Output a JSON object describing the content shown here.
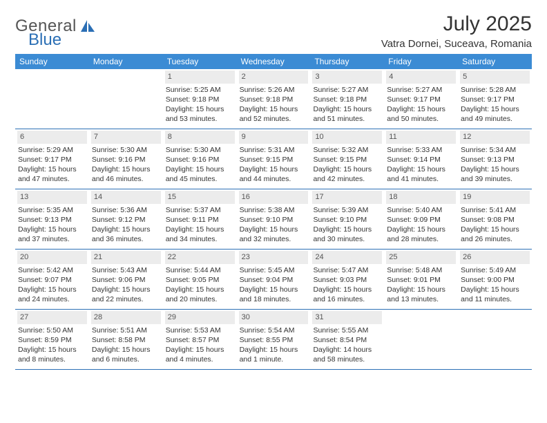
{
  "logo": {
    "word1": "General",
    "word2": "Blue"
  },
  "title": "July 2025",
  "location": "Vatra Dornei, Suceava, Romania",
  "colors": {
    "header_bg": "#3b8bd4",
    "header_text": "#ffffff",
    "row_border": "#2b6fb5",
    "daynum_bg": "#ececec",
    "text": "#333333"
  },
  "weekdays": [
    "Sunday",
    "Monday",
    "Tuesday",
    "Wednesday",
    "Thursday",
    "Friday",
    "Saturday"
  ],
  "weeks": [
    [
      {
        "n": "",
        "sunrise": "",
        "sunset": "",
        "day1": "",
        "day2": ""
      },
      {
        "n": "",
        "sunrise": "",
        "sunset": "",
        "day1": "",
        "day2": ""
      },
      {
        "n": "1",
        "sunrise": "Sunrise: 5:25 AM",
        "sunset": "Sunset: 9:18 PM",
        "day1": "Daylight: 15 hours",
        "day2": "and 53 minutes."
      },
      {
        "n": "2",
        "sunrise": "Sunrise: 5:26 AM",
        "sunset": "Sunset: 9:18 PM",
        "day1": "Daylight: 15 hours",
        "day2": "and 52 minutes."
      },
      {
        "n": "3",
        "sunrise": "Sunrise: 5:27 AM",
        "sunset": "Sunset: 9:18 PM",
        "day1": "Daylight: 15 hours",
        "day2": "and 51 minutes."
      },
      {
        "n": "4",
        "sunrise": "Sunrise: 5:27 AM",
        "sunset": "Sunset: 9:17 PM",
        "day1": "Daylight: 15 hours",
        "day2": "and 50 minutes."
      },
      {
        "n": "5",
        "sunrise": "Sunrise: 5:28 AM",
        "sunset": "Sunset: 9:17 PM",
        "day1": "Daylight: 15 hours",
        "day2": "and 49 minutes."
      }
    ],
    [
      {
        "n": "6",
        "sunrise": "Sunrise: 5:29 AM",
        "sunset": "Sunset: 9:17 PM",
        "day1": "Daylight: 15 hours",
        "day2": "and 47 minutes."
      },
      {
        "n": "7",
        "sunrise": "Sunrise: 5:30 AM",
        "sunset": "Sunset: 9:16 PM",
        "day1": "Daylight: 15 hours",
        "day2": "and 46 minutes."
      },
      {
        "n": "8",
        "sunrise": "Sunrise: 5:30 AM",
        "sunset": "Sunset: 9:16 PM",
        "day1": "Daylight: 15 hours",
        "day2": "and 45 minutes."
      },
      {
        "n": "9",
        "sunrise": "Sunrise: 5:31 AM",
        "sunset": "Sunset: 9:15 PM",
        "day1": "Daylight: 15 hours",
        "day2": "and 44 minutes."
      },
      {
        "n": "10",
        "sunrise": "Sunrise: 5:32 AM",
        "sunset": "Sunset: 9:15 PM",
        "day1": "Daylight: 15 hours",
        "day2": "and 42 minutes."
      },
      {
        "n": "11",
        "sunrise": "Sunrise: 5:33 AM",
        "sunset": "Sunset: 9:14 PM",
        "day1": "Daylight: 15 hours",
        "day2": "and 41 minutes."
      },
      {
        "n": "12",
        "sunrise": "Sunrise: 5:34 AM",
        "sunset": "Sunset: 9:13 PM",
        "day1": "Daylight: 15 hours",
        "day2": "and 39 minutes."
      }
    ],
    [
      {
        "n": "13",
        "sunrise": "Sunrise: 5:35 AM",
        "sunset": "Sunset: 9:13 PM",
        "day1": "Daylight: 15 hours",
        "day2": "and 37 minutes."
      },
      {
        "n": "14",
        "sunrise": "Sunrise: 5:36 AM",
        "sunset": "Sunset: 9:12 PM",
        "day1": "Daylight: 15 hours",
        "day2": "and 36 minutes."
      },
      {
        "n": "15",
        "sunrise": "Sunrise: 5:37 AM",
        "sunset": "Sunset: 9:11 PM",
        "day1": "Daylight: 15 hours",
        "day2": "and 34 minutes."
      },
      {
        "n": "16",
        "sunrise": "Sunrise: 5:38 AM",
        "sunset": "Sunset: 9:10 PM",
        "day1": "Daylight: 15 hours",
        "day2": "and 32 minutes."
      },
      {
        "n": "17",
        "sunrise": "Sunrise: 5:39 AM",
        "sunset": "Sunset: 9:10 PM",
        "day1": "Daylight: 15 hours",
        "day2": "and 30 minutes."
      },
      {
        "n": "18",
        "sunrise": "Sunrise: 5:40 AM",
        "sunset": "Sunset: 9:09 PM",
        "day1": "Daylight: 15 hours",
        "day2": "and 28 minutes."
      },
      {
        "n": "19",
        "sunrise": "Sunrise: 5:41 AM",
        "sunset": "Sunset: 9:08 PM",
        "day1": "Daylight: 15 hours",
        "day2": "and 26 minutes."
      }
    ],
    [
      {
        "n": "20",
        "sunrise": "Sunrise: 5:42 AM",
        "sunset": "Sunset: 9:07 PM",
        "day1": "Daylight: 15 hours",
        "day2": "and 24 minutes."
      },
      {
        "n": "21",
        "sunrise": "Sunrise: 5:43 AM",
        "sunset": "Sunset: 9:06 PM",
        "day1": "Daylight: 15 hours",
        "day2": "and 22 minutes."
      },
      {
        "n": "22",
        "sunrise": "Sunrise: 5:44 AM",
        "sunset": "Sunset: 9:05 PM",
        "day1": "Daylight: 15 hours",
        "day2": "and 20 minutes."
      },
      {
        "n": "23",
        "sunrise": "Sunrise: 5:45 AM",
        "sunset": "Sunset: 9:04 PM",
        "day1": "Daylight: 15 hours",
        "day2": "and 18 minutes."
      },
      {
        "n": "24",
        "sunrise": "Sunrise: 5:47 AM",
        "sunset": "Sunset: 9:03 PM",
        "day1": "Daylight: 15 hours",
        "day2": "and 16 minutes."
      },
      {
        "n": "25",
        "sunrise": "Sunrise: 5:48 AM",
        "sunset": "Sunset: 9:01 PM",
        "day1": "Daylight: 15 hours",
        "day2": "and 13 minutes."
      },
      {
        "n": "26",
        "sunrise": "Sunrise: 5:49 AM",
        "sunset": "Sunset: 9:00 PM",
        "day1": "Daylight: 15 hours",
        "day2": "and 11 minutes."
      }
    ],
    [
      {
        "n": "27",
        "sunrise": "Sunrise: 5:50 AM",
        "sunset": "Sunset: 8:59 PM",
        "day1": "Daylight: 15 hours",
        "day2": "and 8 minutes."
      },
      {
        "n": "28",
        "sunrise": "Sunrise: 5:51 AM",
        "sunset": "Sunset: 8:58 PM",
        "day1": "Daylight: 15 hours",
        "day2": "and 6 minutes."
      },
      {
        "n": "29",
        "sunrise": "Sunrise: 5:53 AM",
        "sunset": "Sunset: 8:57 PM",
        "day1": "Daylight: 15 hours",
        "day2": "and 4 minutes."
      },
      {
        "n": "30",
        "sunrise": "Sunrise: 5:54 AM",
        "sunset": "Sunset: 8:55 PM",
        "day1": "Daylight: 15 hours",
        "day2": "and 1 minute."
      },
      {
        "n": "31",
        "sunrise": "Sunrise: 5:55 AM",
        "sunset": "Sunset: 8:54 PM",
        "day1": "Daylight: 14 hours",
        "day2": "and 58 minutes."
      },
      {
        "n": "",
        "sunrise": "",
        "sunset": "",
        "day1": "",
        "day2": ""
      },
      {
        "n": "",
        "sunrise": "",
        "sunset": "",
        "day1": "",
        "day2": ""
      }
    ]
  ]
}
